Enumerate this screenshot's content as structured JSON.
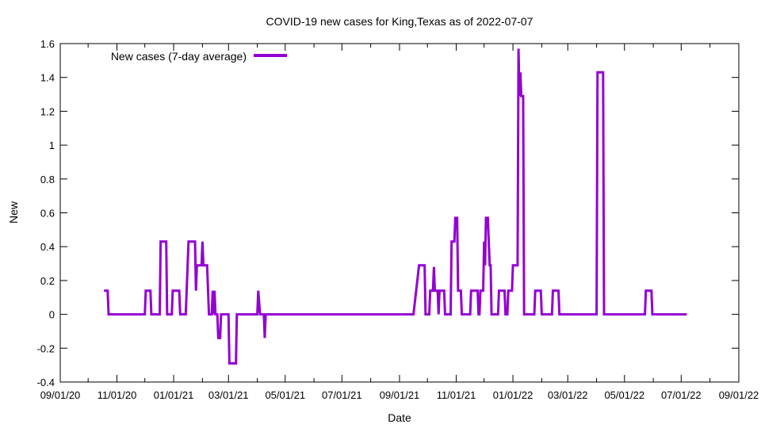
{
  "chart_data": {
    "type": "line",
    "title": "COVID-19 new cases for King,Texas as of 2022-07-07",
    "xlabel": "Date",
    "ylabel": "New",
    "xlim": [
      "2020-09-01",
      "2022-09-01"
    ],
    "ylim": [
      -0.4,
      1.6
    ],
    "x_ticks": [
      "09/01/20",
      "11/01/20",
      "01/01/21",
      "03/01/21",
      "05/01/21",
      "07/01/21",
      "09/01/21",
      "11/01/21",
      "01/01/22",
      "03/01/22",
      "05/01/22",
      "07/01/22",
      "09/01/22"
    ],
    "y_ticks": [
      "-0.4",
      "-0.2",
      "0",
      "0.2",
      "0.4",
      "0.6",
      "0.8",
      "1",
      "1.2",
      "1.4",
      "1.6"
    ],
    "grid": false,
    "legend_position": "top-left",
    "series": [
      {
        "name": "New cases (7-day average)",
        "color": "#9400d3",
        "points": [
          [
            "2020-10-18",
            0.14
          ],
          [
            "2020-10-22",
            0.14
          ],
          [
            "2020-10-23",
            0.0
          ],
          [
            "2020-12-01",
            0.0
          ],
          [
            "2020-12-02",
            0.14
          ],
          [
            "2020-12-07",
            0.14
          ],
          [
            "2020-12-08",
            0.0
          ],
          [
            "2020-12-17",
            0.0
          ],
          [
            "2020-12-18",
            0.43
          ],
          [
            "2020-12-24",
            0.43
          ],
          [
            "2020-12-25",
            0.0
          ],
          [
            "2020-12-30",
            0.0
          ],
          [
            "2020-12-31",
            0.14
          ],
          [
            "2021-01-07",
            0.14
          ],
          [
            "2021-01-08",
            0.0
          ],
          [
            "2021-01-14",
            0.0
          ],
          [
            "2021-01-15",
            0.14
          ],
          [
            "2021-01-17",
            0.43
          ],
          [
            "2021-01-24",
            0.43
          ],
          [
            "2021-01-25",
            0.14
          ],
          [
            "2021-01-26",
            0.29
          ],
          [
            "2021-01-31",
            0.29
          ],
          [
            "2021-02-01",
            0.43
          ],
          [
            "2021-02-02",
            0.29
          ],
          [
            "2021-02-06",
            0.29
          ],
          [
            "2021-02-07",
            0.14
          ],
          [
            "2021-02-08",
            0.0
          ],
          [
            "2021-02-11",
            0.0
          ],
          [
            "2021-02-12",
            0.14
          ],
          [
            "2021-02-13",
            0.0
          ],
          [
            "2021-02-14",
            0.14
          ],
          [
            "2021-02-15",
            0.0
          ],
          [
            "2021-02-17",
            0.0
          ],
          [
            "2021-02-18",
            -0.14
          ],
          [
            "2021-02-20",
            -0.14
          ],
          [
            "2021-02-21",
            0.0
          ],
          [
            "2021-02-23",
            0.0
          ],
          [
            "2021-02-24",
            0.0
          ],
          [
            "2021-03-01",
            0.0
          ],
          [
            "2021-03-02",
            -0.29
          ],
          [
            "2021-03-09",
            -0.29
          ],
          [
            "2021-03-10",
            0.0
          ],
          [
            "2021-04-01",
            0.0
          ],
          [
            "2021-04-02",
            0.14
          ],
          [
            "2021-04-04",
            0.0
          ],
          [
            "2021-04-08",
            0.0
          ],
          [
            "2021-04-09",
            -0.14
          ],
          [
            "2021-04-10",
            0.0
          ],
          [
            "2021-09-16",
            0.0
          ],
          [
            "2021-09-22",
            0.29
          ],
          [
            "2021-09-28",
            0.29
          ],
          [
            "2021-09-29",
            0.0
          ],
          [
            "2021-10-03",
            0.0
          ],
          [
            "2021-10-04",
            0.14
          ],
          [
            "2021-10-07",
            0.14
          ],
          [
            "2021-10-08",
            0.28
          ],
          [
            "2021-10-09",
            0.14
          ],
          [
            "2021-10-12",
            0.14
          ],
          [
            "2021-10-13",
            0.0
          ],
          [
            "2021-10-14",
            0.14
          ],
          [
            "2021-10-19",
            0.14
          ],
          [
            "2021-10-20",
            0.0
          ],
          [
            "2021-10-26",
            0.0
          ],
          [
            "2021-10-27",
            0.43
          ],
          [
            "2021-10-30",
            0.43
          ],
          [
            "2021-10-31",
            0.57
          ],
          [
            "2021-11-02",
            0.57
          ],
          [
            "2021-11-03",
            0.14
          ],
          [
            "2021-11-06",
            0.14
          ],
          [
            "2021-11-07",
            0.0
          ],
          [
            "2021-11-16",
            0.0
          ],
          [
            "2021-11-17",
            0.14
          ],
          [
            "2021-11-24",
            0.14
          ],
          [
            "2021-11-25",
            0.0
          ],
          [
            "2021-11-26",
            0.0
          ],
          [
            "2021-11-27",
            0.14
          ],
          [
            "2021-11-30",
            0.14
          ],
          [
            "2021-12-01",
            0.43
          ],
          [
            "2021-12-02",
            0.29
          ],
          [
            "2021-12-03",
            0.57
          ],
          [
            "2021-12-05",
            0.57
          ],
          [
            "2021-12-06",
            0.43
          ],
          [
            "2021-12-07",
            0.29
          ],
          [
            "2021-12-08",
            0.29
          ],
          [
            "2021-12-09",
            0.0
          ],
          [
            "2021-12-16",
            0.0
          ],
          [
            "2021-12-17",
            0.14
          ],
          [
            "2021-12-23",
            0.14
          ],
          [
            "2021-12-24",
            0.0
          ],
          [
            "2021-12-26",
            0.0
          ],
          [
            "2021-12-27",
            0.14
          ],
          [
            "2021-12-31",
            0.14
          ],
          [
            "2022-01-01",
            0.29
          ],
          [
            "2022-01-06",
            0.29
          ],
          [
            "2022-01-07",
            1.57
          ],
          [
            "2022-01-08",
            1.29
          ],
          [
            "2022-01-09",
            1.43
          ],
          [
            "2022-01-10",
            1.29
          ],
          [
            "2022-01-12",
            1.29
          ],
          [
            "2022-01-13",
            0.0
          ],
          [
            "2022-01-24",
            0.0
          ],
          [
            "2022-01-25",
            0.14
          ],
          [
            "2022-01-31",
            0.14
          ],
          [
            "2022-02-01",
            0.0
          ],
          [
            "2022-02-12",
            0.0
          ],
          [
            "2022-02-13",
            0.14
          ],
          [
            "2022-02-19",
            0.14
          ],
          [
            "2022-02-20",
            0.0
          ],
          [
            "2022-04-01",
            0.0
          ],
          [
            "2022-04-02",
            1.43
          ],
          [
            "2022-04-08",
            1.43
          ],
          [
            "2022-04-09",
            0.0
          ],
          [
            "2022-05-23",
            0.0
          ],
          [
            "2022-05-24",
            0.14
          ],
          [
            "2022-05-30",
            0.14
          ],
          [
            "2022-05-31",
            0.0
          ],
          [
            "2022-07-07",
            0.0
          ]
        ]
      }
    ]
  }
}
